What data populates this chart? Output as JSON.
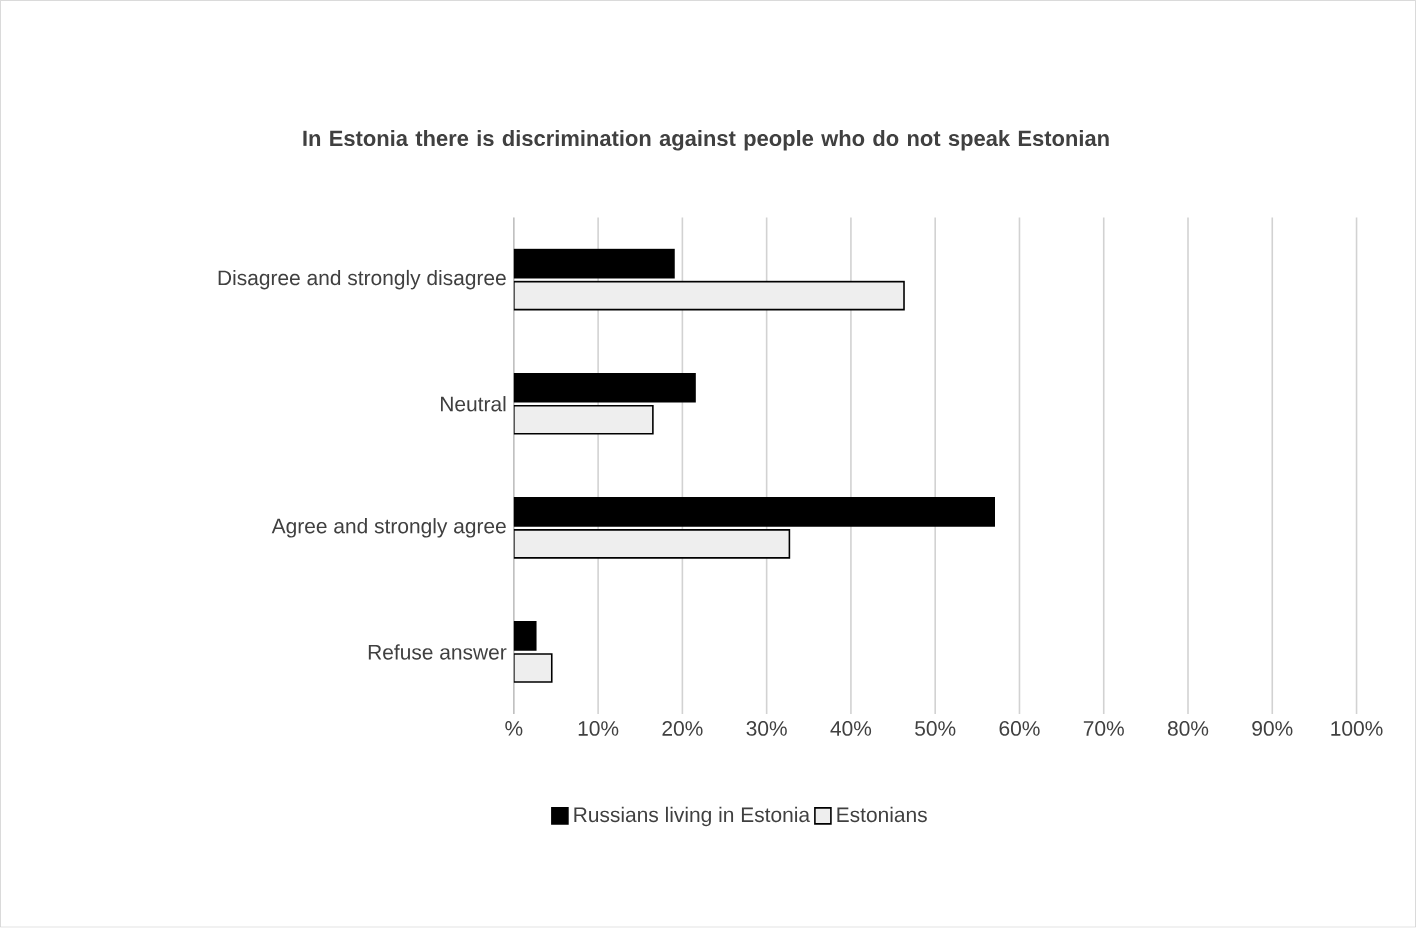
{
  "chart_data": {
    "type": "bar",
    "orientation": "horizontal",
    "title": "In Estonia there is discrimination against people who do not speak Estonian",
    "categories": [
      "Disagree and strongly disagree",
      "Neutral",
      "Agree and strongly agree",
      "Refuse answer"
    ],
    "series": [
      {
        "name": "Russians living in Estonia",
        "color": "#000000",
        "values": [
          19,
          21.5,
          57,
          2.6
        ]
      },
      {
        "name": "Estonians",
        "color": "#eeeeee",
        "values": [
          46.3,
          16.5,
          32.7,
          4.5
        ]
      }
    ],
    "xlim": [
      0,
      100
    ],
    "xticks": [
      {
        "value": 0,
        "label": "%"
      },
      {
        "value": 10,
        "label": "10%"
      },
      {
        "value": 20,
        "label": "20%"
      },
      {
        "value": 30,
        "label": "30%"
      },
      {
        "value": 40,
        "label": "40%"
      },
      {
        "value": 50,
        "label": "50%"
      },
      {
        "value": 60,
        "label": "60%"
      },
      {
        "value": 70,
        "label": "70%"
      },
      {
        "value": 80,
        "label": "80%"
      },
      {
        "value": 90,
        "label": "90%"
      },
      {
        "value": 100,
        "label": "100%"
      }
    ],
    "grid": "x",
    "legend": "bottom"
  }
}
